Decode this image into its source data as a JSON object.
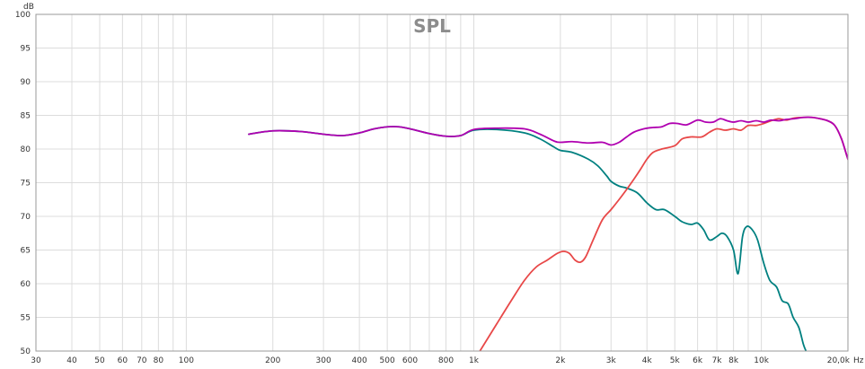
{
  "chart_data": {
    "type": "line",
    "title": "SPL",
    "ylabel": "dB",
    "xlabel": "",
    "x_unit_label": "Hz",
    "x_scale": "log",
    "xlim": [
      30,
      20000
    ],
    "ylim": [
      50,
      100
    ],
    "grid": true,
    "x_ticks": [
      {
        "value": 30,
        "label": "30"
      },
      {
        "value": 40,
        "label": "40"
      },
      {
        "value": 50,
        "label": "50"
      },
      {
        "value": 60,
        "label": "60"
      },
      {
        "value": 70,
        "label": "70"
      },
      {
        "value": 80,
        "label": "80"
      },
      {
        "value": 90,
        "label": ""
      },
      {
        "value": 100,
        "label": "100"
      },
      {
        "value": 200,
        "label": "200"
      },
      {
        "value": 300,
        "label": "300"
      },
      {
        "value": 400,
        "label": "400"
      },
      {
        "value": 500,
        "label": "500"
      },
      {
        "value": 600,
        "label": "600"
      },
      {
        "value": 700,
        "label": ""
      },
      {
        "value": 800,
        "label": "800"
      },
      {
        "value": 900,
        "label": ""
      },
      {
        "value": 1000,
        "label": "1k"
      },
      {
        "value": 2000,
        "label": "2k"
      },
      {
        "value": 3000,
        "label": "3k"
      },
      {
        "value": 4000,
        "label": "4k"
      },
      {
        "value": 5000,
        "label": "5k"
      },
      {
        "value": 6000,
        "label": "6k"
      },
      {
        "value": 7000,
        "label": "7k"
      },
      {
        "value": 8000,
        "label": "8k"
      },
      {
        "value": 9000,
        "label": ""
      },
      {
        "value": 10000,
        "label": "10k"
      },
      {
        "value": 20000,
        "label": "20,0k"
      }
    ],
    "y_ticks": [
      50,
      55,
      60,
      65,
      70,
      75,
      80,
      85,
      90,
      95,
      100
    ],
    "series": [
      {
        "color": "#008080",
        "points": [
          [
            165,
            82.2
          ],
          [
            200,
            82.7
          ],
          [
            250,
            82.6
          ],
          [
            300,
            82.2
          ],
          [
            350,
            82.0
          ],
          [
            400,
            82.4
          ],
          [
            450,
            83.0
          ],
          [
            500,
            83.3
          ],
          [
            550,
            83.3
          ],
          [
            600,
            83.0
          ],
          [
            700,
            82.3
          ],
          [
            800,
            81.9
          ],
          [
            900,
            82.0
          ],
          [
            1000,
            82.8
          ],
          [
            1200,
            82.9
          ],
          [
            1500,
            82.4
          ],
          [
            1700,
            81.5
          ],
          [
            1900,
            80.3
          ],
          [
            2000,
            79.8
          ],
          [
            2200,
            79.5
          ],
          [
            2500,
            78.5
          ],
          [
            2700,
            77.5
          ],
          [
            2900,
            76.0
          ],
          [
            3000,
            75.2
          ],
          [
            3200,
            74.5
          ],
          [
            3400,
            74.2
          ],
          [
            3700,
            73.5
          ],
          [
            4000,
            72.0
          ],
          [
            4300,
            71.0
          ],
          [
            4600,
            71.0
          ],
          [
            5000,
            70.0
          ],
          [
            5300,
            69.2
          ],
          [
            5700,
            68.8
          ],
          [
            6000,
            69.0
          ],
          [
            6300,
            68.0
          ],
          [
            6600,
            66.5
          ],
          [
            7000,
            67.0
          ],
          [
            7300,
            67.5
          ],
          [
            7600,
            67.0
          ],
          [
            8000,
            65.0
          ],
          [
            8300,
            61.5
          ],
          [
            8600,
            67.0
          ],
          [
            8900,
            68.5
          ],
          [
            9300,
            68.0
          ],
          [
            9700,
            66.5
          ],
          [
            10200,
            63.0
          ],
          [
            10700,
            60.5
          ],
          [
            11300,
            59.5
          ],
          [
            11800,
            57.5
          ],
          [
            12400,
            57.0
          ],
          [
            12900,
            55.0
          ],
          [
            13500,
            53.5
          ],
          [
            14000,
            51.0
          ],
          [
            14300,
            50.0
          ]
        ]
      },
      {
        "color": "#e84848",
        "points": [
          [
            1050,
            50.0
          ],
          [
            1200,
            54.0
          ],
          [
            1350,
            57.5
          ],
          [
            1500,
            60.5
          ],
          [
            1650,
            62.5
          ],
          [
            1800,
            63.5
          ],
          [
            1950,
            64.5
          ],
          [
            2050,
            64.8
          ],
          [
            2150,
            64.5
          ],
          [
            2250,
            63.5
          ],
          [
            2350,
            63.2
          ],
          [
            2450,
            64.0
          ],
          [
            2600,
            66.5
          ],
          [
            2800,
            69.5
          ],
          [
            3000,
            71.0
          ],
          [
            3200,
            72.5
          ],
          [
            3400,
            74.0
          ],
          [
            3600,
            75.5
          ],
          [
            3800,
            77.0
          ],
          [
            4000,
            78.5
          ],
          [
            4200,
            79.5
          ],
          [
            4500,
            80.0
          ],
          [
            5000,
            80.5
          ],
          [
            5300,
            81.5
          ],
          [
            5700,
            81.8
          ],
          [
            6200,
            81.8
          ],
          [
            6600,
            82.5
          ],
          [
            7000,
            83.0
          ],
          [
            7500,
            82.8
          ],
          [
            8000,
            83.0
          ],
          [
            8500,
            82.8
          ],
          [
            9000,
            83.5
          ],
          [
            9600,
            83.5
          ],
          [
            10200,
            83.8
          ],
          [
            10800,
            84.2
          ],
          [
            11500,
            84.5
          ],
          [
            12200,
            84.3
          ],
          [
            13000,
            84.6
          ],
          [
            14000,
            84.7
          ],
          [
            15000,
            84.7
          ],
          [
            16000,
            84.5
          ],
          [
            17000,
            84.2
          ],
          [
            18000,
            83.5
          ],
          [
            19000,
            81.5
          ],
          [
            20000,
            78.5
          ],
          [
            20900,
            76.5
          ]
        ]
      },
      {
        "color": "#b000b0",
        "points": [
          [
            165,
            82.2
          ],
          [
            200,
            82.7
          ],
          [
            250,
            82.6
          ],
          [
            300,
            82.2
          ],
          [
            350,
            82.0
          ],
          [
            400,
            82.4
          ],
          [
            450,
            83.0
          ],
          [
            500,
            83.3
          ],
          [
            550,
            83.3
          ],
          [
            600,
            83.0
          ],
          [
            700,
            82.3
          ],
          [
            800,
            81.9
          ],
          [
            900,
            82.0
          ],
          [
            1000,
            82.9
          ],
          [
            1200,
            83.1
          ],
          [
            1500,
            83.0
          ],
          [
            1700,
            82.2
          ],
          [
            1900,
            81.2
          ],
          [
            2000,
            81.0
          ],
          [
            2200,
            81.1
          ],
          [
            2500,
            80.9
          ],
          [
            2800,
            81.0
          ],
          [
            3000,
            80.6
          ],
          [
            3200,
            81.0
          ],
          [
            3400,
            81.8
          ],
          [
            3600,
            82.5
          ],
          [
            3900,
            83.0
          ],
          [
            4200,
            83.2
          ],
          [
            4500,
            83.3
          ],
          [
            4800,
            83.8
          ],
          [
            5100,
            83.8
          ],
          [
            5500,
            83.6
          ],
          [
            6000,
            84.3
          ],
          [
            6400,
            84.0
          ],
          [
            6800,
            84.0
          ],
          [
            7200,
            84.5
          ],
          [
            7600,
            84.2
          ],
          [
            8000,
            84.0
          ],
          [
            8500,
            84.2
          ],
          [
            9000,
            84.0
          ],
          [
            9600,
            84.2
          ],
          [
            10200,
            84.0
          ],
          [
            10800,
            84.3
          ],
          [
            11500,
            84.2
          ],
          [
            12200,
            84.4
          ],
          [
            13000,
            84.5
          ],
          [
            14000,
            84.7
          ],
          [
            15000,
            84.7
          ],
          [
            16000,
            84.5
          ],
          [
            17000,
            84.2
          ],
          [
            18000,
            83.5
          ],
          [
            19000,
            81.5
          ],
          [
            20000,
            78.5
          ],
          [
            20900,
            76.5
          ]
        ]
      }
    ]
  }
}
